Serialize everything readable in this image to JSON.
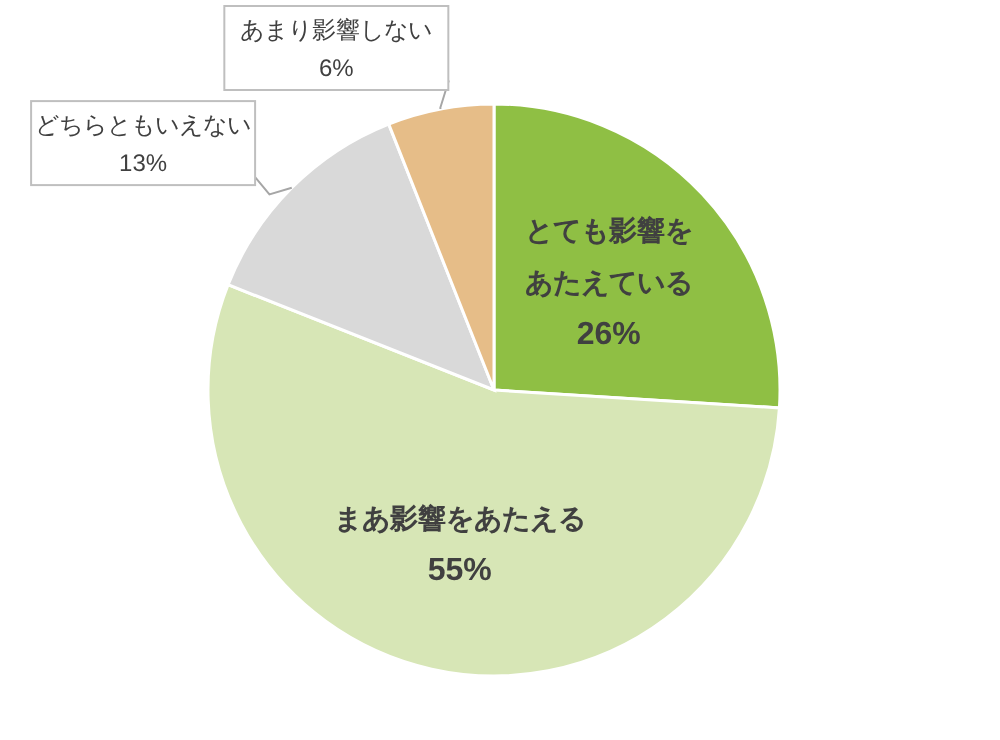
{
  "chart_data": {
    "type": "pie",
    "categories": [
      "とても影響をあたえている",
      "まあ影響をあたえる",
      "どちらともいえない",
      "あまり影響しない"
    ],
    "values": [
      26,
      55,
      13,
      6
    ],
    "value_labels": [
      "26%",
      "55%",
      "13%",
      "6%"
    ],
    "colors": [
      "#8fbf44",
      "#d7e6b6",
      "#d9d9d9",
      "#e6bd88"
    ],
    "legend": false
  }
}
